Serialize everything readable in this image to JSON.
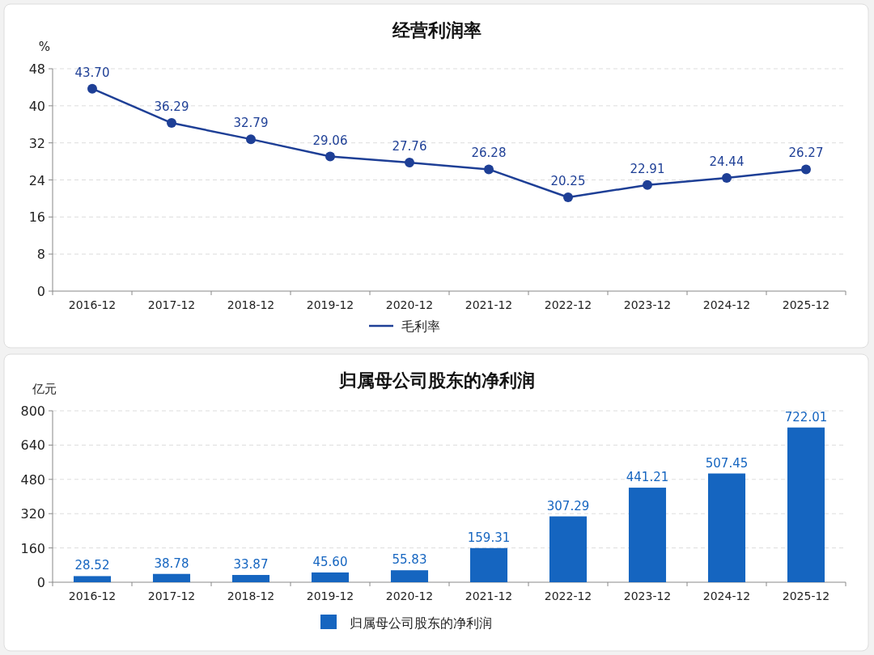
{
  "chart_data": [
    {
      "type": "line",
      "title": "经营利润率",
      "ylabel": "%",
      "categories": [
        "2016-12",
        "2017-12",
        "2018-12",
        "2019-12",
        "2020-12",
        "2021-12",
        "2022-12",
        "2023-12",
        "2024-12",
        "2025-12"
      ],
      "series": [
        {
          "name": "毛利率",
          "color": "#1e3f96",
          "values": [
            43.7,
            36.29,
            32.79,
            29.06,
            27.76,
            26.28,
            20.25,
            22.91,
            24.44,
            26.27
          ],
          "value_labels": [
            "43.70",
            "36.29",
            "32.79",
            "29.06",
            "27.76",
            "26.28",
            "20.25",
            "22.91",
            "24.44",
            "26.27"
          ]
        }
      ],
      "ylim": [
        0,
        48
      ],
      "yticks": [
        0,
        8,
        16,
        24,
        32,
        40,
        48
      ],
      "grid": "y",
      "legend": "bottom",
      "marker": "circle"
    },
    {
      "type": "bar",
      "title": "归属母公司股东的净利润",
      "ylabel": "亿元",
      "categories": [
        "2016-12",
        "2017-12",
        "2018-12",
        "2019-12",
        "2020-12",
        "2021-12",
        "2022-12",
        "2023-12",
        "2024-12",
        "2025-12"
      ],
      "series": [
        {
          "name": "归属母公司股东的净利润",
          "color": "#1565c0",
          "values": [
            28.52,
            38.78,
            33.87,
            45.6,
            55.83,
            159.31,
            307.29,
            441.21,
            507.45,
            722.01
          ],
          "value_labels": [
            "28.52",
            "38.78",
            "33.87",
            "45.60",
            "55.83",
            "159.31",
            "307.29",
            "441.21",
            "507.45",
            "722.01"
          ]
        }
      ],
      "ylim": [
        0,
        800
      ],
      "yticks": [
        0,
        160,
        320,
        480,
        640,
        800
      ],
      "grid": "y",
      "legend": "bottom"
    }
  ]
}
